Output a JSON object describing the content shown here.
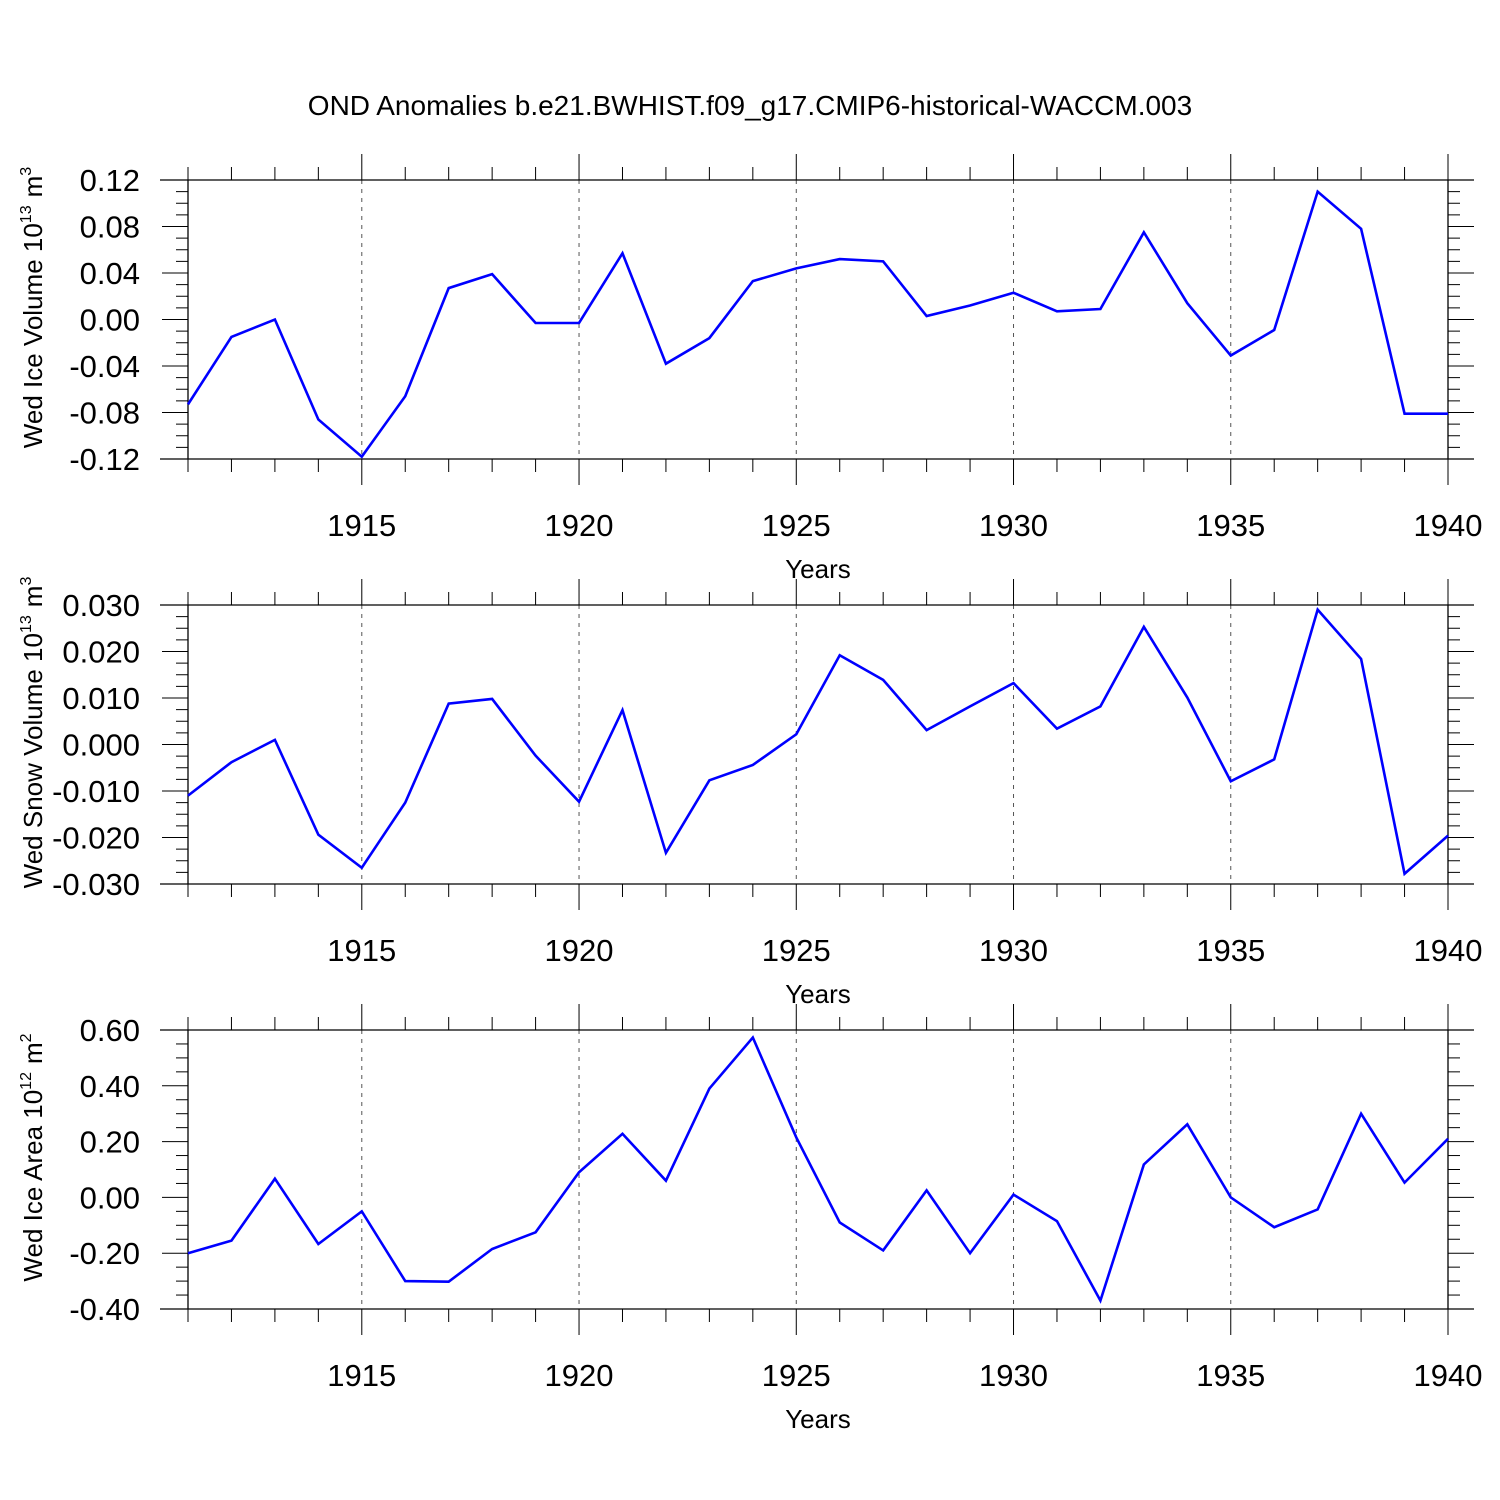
{
  "title": "OND Anomalies b.e21.BWHIST.f09_g17.CMIP6-historical-WACCM.003",
  "colors": {
    "series": "#0000ff",
    "frame": "#000000",
    "gridline": "#555555"
  },
  "chart_data": [
    {
      "type": "line",
      "ylabel": {
        "main": "Wed Ice Volume 10",
        "exponent": "13",
        "unit": "m",
        "unit_exponent": "3"
      },
      "xlabel": "Years",
      "xlim": [
        1911,
        1940
      ],
      "xticks": [
        1915,
        1920,
        1925,
        1930,
        1935,
        1940
      ],
      "ylim": [
        -0.12,
        0.12
      ],
      "yticks": [
        0.12,
        0.08,
        0.04,
        0.0,
        -0.04,
        -0.08,
        -0.12
      ],
      "ytick_labels": [
        "0.12",
        "0.08",
        "0.04",
        "0.00",
        "-0.04",
        "-0.08",
        "-0.12"
      ],
      "series": [
        {
          "name": "Wed Ice Volume",
          "x": [
            1911,
            1912,
            1913,
            1914,
            1915,
            1916,
            1917,
            1918,
            1919,
            1920,
            1921,
            1922,
            1923,
            1924,
            1925,
            1926,
            1927,
            1928,
            1929,
            1930,
            1931,
            1932,
            1933,
            1934,
            1935,
            1936,
            1937,
            1938,
            1939,
            1940
          ],
          "values": [
            -0.073,
            -0.015,
            0.0,
            -0.086,
            -0.118,
            -0.066,
            0.027,
            0.039,
            -0.003,
            -0.003,
            0.057,
            -0.038,
            -0.016,
            0.033,
            0.044,
            0.052,
            0.05,
            0.003,
            0.012,
            0.023,
            0.007,
            0.009,
            0.075,
            0.014,
            -0.031,
            -0.009,
            0.11,
            0.078,
            -0.081,
            -0.081
          ]
        }
      ]
    },
    {
      "type": "line",
      "ylabel": {
        "main": "Wed Snow Volume 10",
        "exponent": "13",
        "unit": "m",
        "unit_exponent": "3"
      },
      "xlabel": "Years",
      "xlim": [
        1911,
        1940
      ],
      "xticks": [
        1915,
        1920,
        1925,
        1930,
        1935,
        1940
      ],
      "ylim": [
        -0.03,
        0.03
      ],
      "yticks": [
        0.03,
        0.02,
        0.01,
        0.0,
        -0.01,
        -0.02,
        -0.03
      ],
      "ytick_labels": [
        "0.030",
        "0.020",
        "0.010",
        "0.000",
        "-0.010",
        "-0.020",
        "-0.030"
      ],
      "series": [
        {
          "name": "Wed Snow Volume",
          "x": [
            1911,
            1912,
            1913,
            1914,
            1915,
            1916,
            1917,
            1918,
            1919,
            1920,
            1921,
            1922,
            1923,
            1924,
            1925,
            1926,
            1927,
            1928,
            1929,
            1930,
            1931,
            1932,
            1933,
            1934,
            1935,
            1936,
            1937,
            1938,
            1939,
            1940
          ],
          "values": [
            -0.011,
            -0.0038,
            0.001,
            -0.0194,
            -0.0265,
            -0.0125,
            0.0088,
            0.0098,
            -0.0024,
            -0.0123,
            0.0074,
            -0.0233,
            -0.0077,
            -0.0044,
            0.0022,
            0.0192,
            0.0139,
            0.0031,
            0.0082,
            0.0132,
            0.0034,
            0.0082,
            0.0253,
            0.0101,
            -0.0079,
            -0.0032,
            0.029,
            0.0184,
            -0.0278,
            -0.0196
          ]
        }
      ]
    },
    {
      "type": "line",
      "ylabel": {
        "main": "Wed Ice Area 10",
        "exponent": "12",
        "unit": "m",
        "unit_exponent": "2"
      },
      "xlabel": "Years",
      "xlim": [
        1911,
        1940
      ],
      "xticks": [
        1915,
        1920,
        1925,
        1930,
        1935,
        1940
      ],
      "ylim": [
        -0.4,
        0.6
      ],
      "yticks": [
        0.6,
        0.4,
        0.2,
        0.0,
        -0.2,
        -0.4
      ],
      "ytick_labels": [
        "0.60",
        "0.40",
        "0.20",
        "0.00",
        "-0.20",
        "-0.40"
      ],
      "series": [
        {
          "name": "Wed Ice Area",
          "x": [
            1911,
            1912,
            1913,
            1914,
            1915,
            1916,
            1917,
            1918,
            1919,
            1920,
            1921,
            1922,
            1923,
            1924,
            1925,
            1926,
            1927,
            1928,
            1929,
            1930,
            1931,
            1932,
            1933,
            1934,
            1935,
            1936,
            1937,
            1938,
            1939,
            1940
          ],
          "values": [
            -0.2,
            -0.155,
            0.067,
            -0.167,
            -0.05,
            -0.3,
            -0.302,
            -0.185,
            -0.125,
            0.09,
            0.228,
            0.06,
            0.39,
            0.573,
            0.215,
            -0.09,
            -0.19,
            0.025,
            -0.2,
            0.01,
            -0.085,
            -0.37,
            0.118,
            0.262,
            0.0,
            -0.107,
            -0.043,
            0.3,
            0.053,
            0.21
          ]
        }
      ]
    }
  ]
}
